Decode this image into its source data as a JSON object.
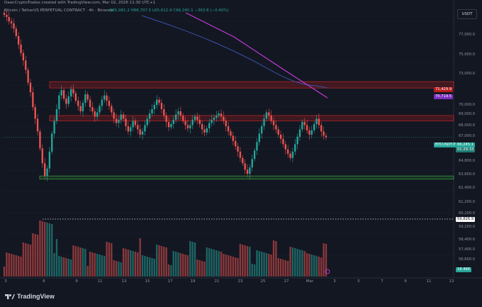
{
  "header": {
    "credit": "DaanCryptoTrades created with TradingView.com, Mar 02, 2026 11:30 UTC+1",
    "symbol": "Bitcoin / TetherUS PERPETUAL CONTRACT · 4h · Binance",
    "ohlc": "O65,981.2 H66,707.5 L65,612.4 C66,245.1 −363.8 (−0.40%)"
  },
  "currency_button": "USDT",
  "y_axis": [
    "77,000.0",
    "75,000.0",
    "73,000.0",
    "71,429.9",
    "70,719.5",
    "70,000.0",
    "69,000.0",
    "68,000.0",
    "67,000.0",
    "66,245.1",
    "64,800.0",
    "63,600.0",
    "62,400.0",
    "61,200.0",
    "60,200.0",
    "59,826.9",
    "59,200.0",
    "58,400.0",
    "57,400.0",
    "56,600.0",
    "18.46K"
  ],
  "price_tags": {
    "orange_level": "71,429.9",
    "purple_level": "70,719.5",
    "current_price": "66,245.1",
    "countdown": "01:29:33",
    "btc_label": "BTCUSDT.P",
    "dotted_level": "59,826.9",
    "volume": "18.46K"
  },
  "x_axis": [
    "3",
    "6",
    "9",
    "11",
    "13",
    "15",
    "17",
    "19",
    "21",
    "23",
    "25",
    "27",
    "Mar",
    "3",
    "5",
    "7",
    "9",
    "11",
    "13"
  ],
  "brand": "TradingView",
  "colors": {
    "up": "#26a69a",
    "down": "#ef5350",
    "bg": "#131722",
    "zone_red": "#b71c1c",
    "zone_green": "#1b5e20",
    "ma_blue": "#3b4fa8",
    "ma_magenta": "#c23ad6"
  },
  "chart_data": {
    "type": "candlestick",
    "timeframe": "4h",
    "ylim": [
      59000,
      78000
    ],
    "resistance_zones": [
      [
        70900,
        71500
      ],
      [
        67800,
        68300
      ]
    ],
    "support_zone": [
      62300,
      62600
    ],
    "dotted_level": 59826.9,
    "current_price": 66245.1,
    "close_series": [
      77800,
      77600,
      77200,
      77000,
      76500,
      75800,
      75000,
      74200,
      73500,
      72600,
      71400,
      70500,
      69100,
      68000,
      66800,
      65200,
      63800,
      62600,
      63300,
      64900,
      66600,
      67800,
      68900,
      70200,
      70700,
      69900,
      69400,
      70100,
      70800,
      70400,
      69700,
      69200,
      68700,
      69500,
      70300,
      69800,
      69100,
      68700,
      68200,
      68600,
      69200,
      69800,
      70200,
      69700,
      69200,
      68600,
      68000,
      67600,
      67900,
      68400,
      68000,
      67300,
      66800,
      67200,
      67800,
      67400,
      67000,
      66500,
      66800,
      67400,
      68000,
      68500,
      68900,
      69300,
      69800,
      69500,
      68900,
      68300,
      67700,
      67200,
      67500,
      67900,
      68400,
      68700,
      68300,
      67800,
      67400,
      67100,
      67400,
      67900,
      68200,
      67900,
      67500,
      67000,
      66700,
      67100,
      67600,
      67900,
      68100,
      68300,
      68500,
      68200,
      67800,
      67300,
      66800,
      66400,
      65900,
      65400,
      64900,
      64300,
      63800,
      63200,
      62800,
      63400,
      64200,
      65000,
      65800,
      66600,
      67300,
      68000,
      68600,
      68300,
      67800,
      67400,
      67000,
      66500,
      66100,
      65600,
      65100,
      64700,
      64300,
      64900,
      65600,
      66300,
      67000,
      67700,
      67400,
      66900,
      66500,
      66900,
      67500,
      68000,
      67400,
      66800,
      66400,
      66245
    ]
  }
}
